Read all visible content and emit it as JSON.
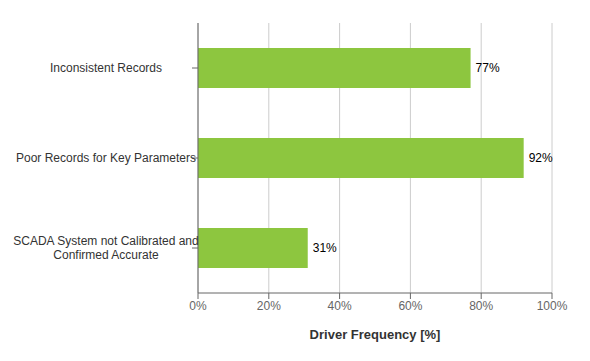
{
  "chart_data": {
    "type": "bar",
    "orientation": "horizontal",
    "categories": [
      "SCADA System not Calibrated and\n   Confirmed Accurate",
      "Poor Records for Key Parameters",
      "Inconsistent Records"
    ],
    "values": [
      31,
      92,
      77
    ],
    "value_labels": [
      "31%",
      "92%",
      "77%"
    ],
    "data_labels": true,
    "color": "#8DC63F",
    "xlabel": "Driver Frequency [%]",
    "xlim": [
      0,
      100
    ],
    "xticks": [
      {
        "value": 0,
        "label": "0%"
      },
      {
        "value": 20,
        "label": "20%"
      },
      {
        "value": 40,
        "label": "40%"
      },
      {
        "value": 60,
        "label": "60%"
      },
      {
        "value": 80,
        "label": "80%"
      },
      {
        "value": 100,
        "label": "100%"
      }
    ],
    "grid": true
  }
}
